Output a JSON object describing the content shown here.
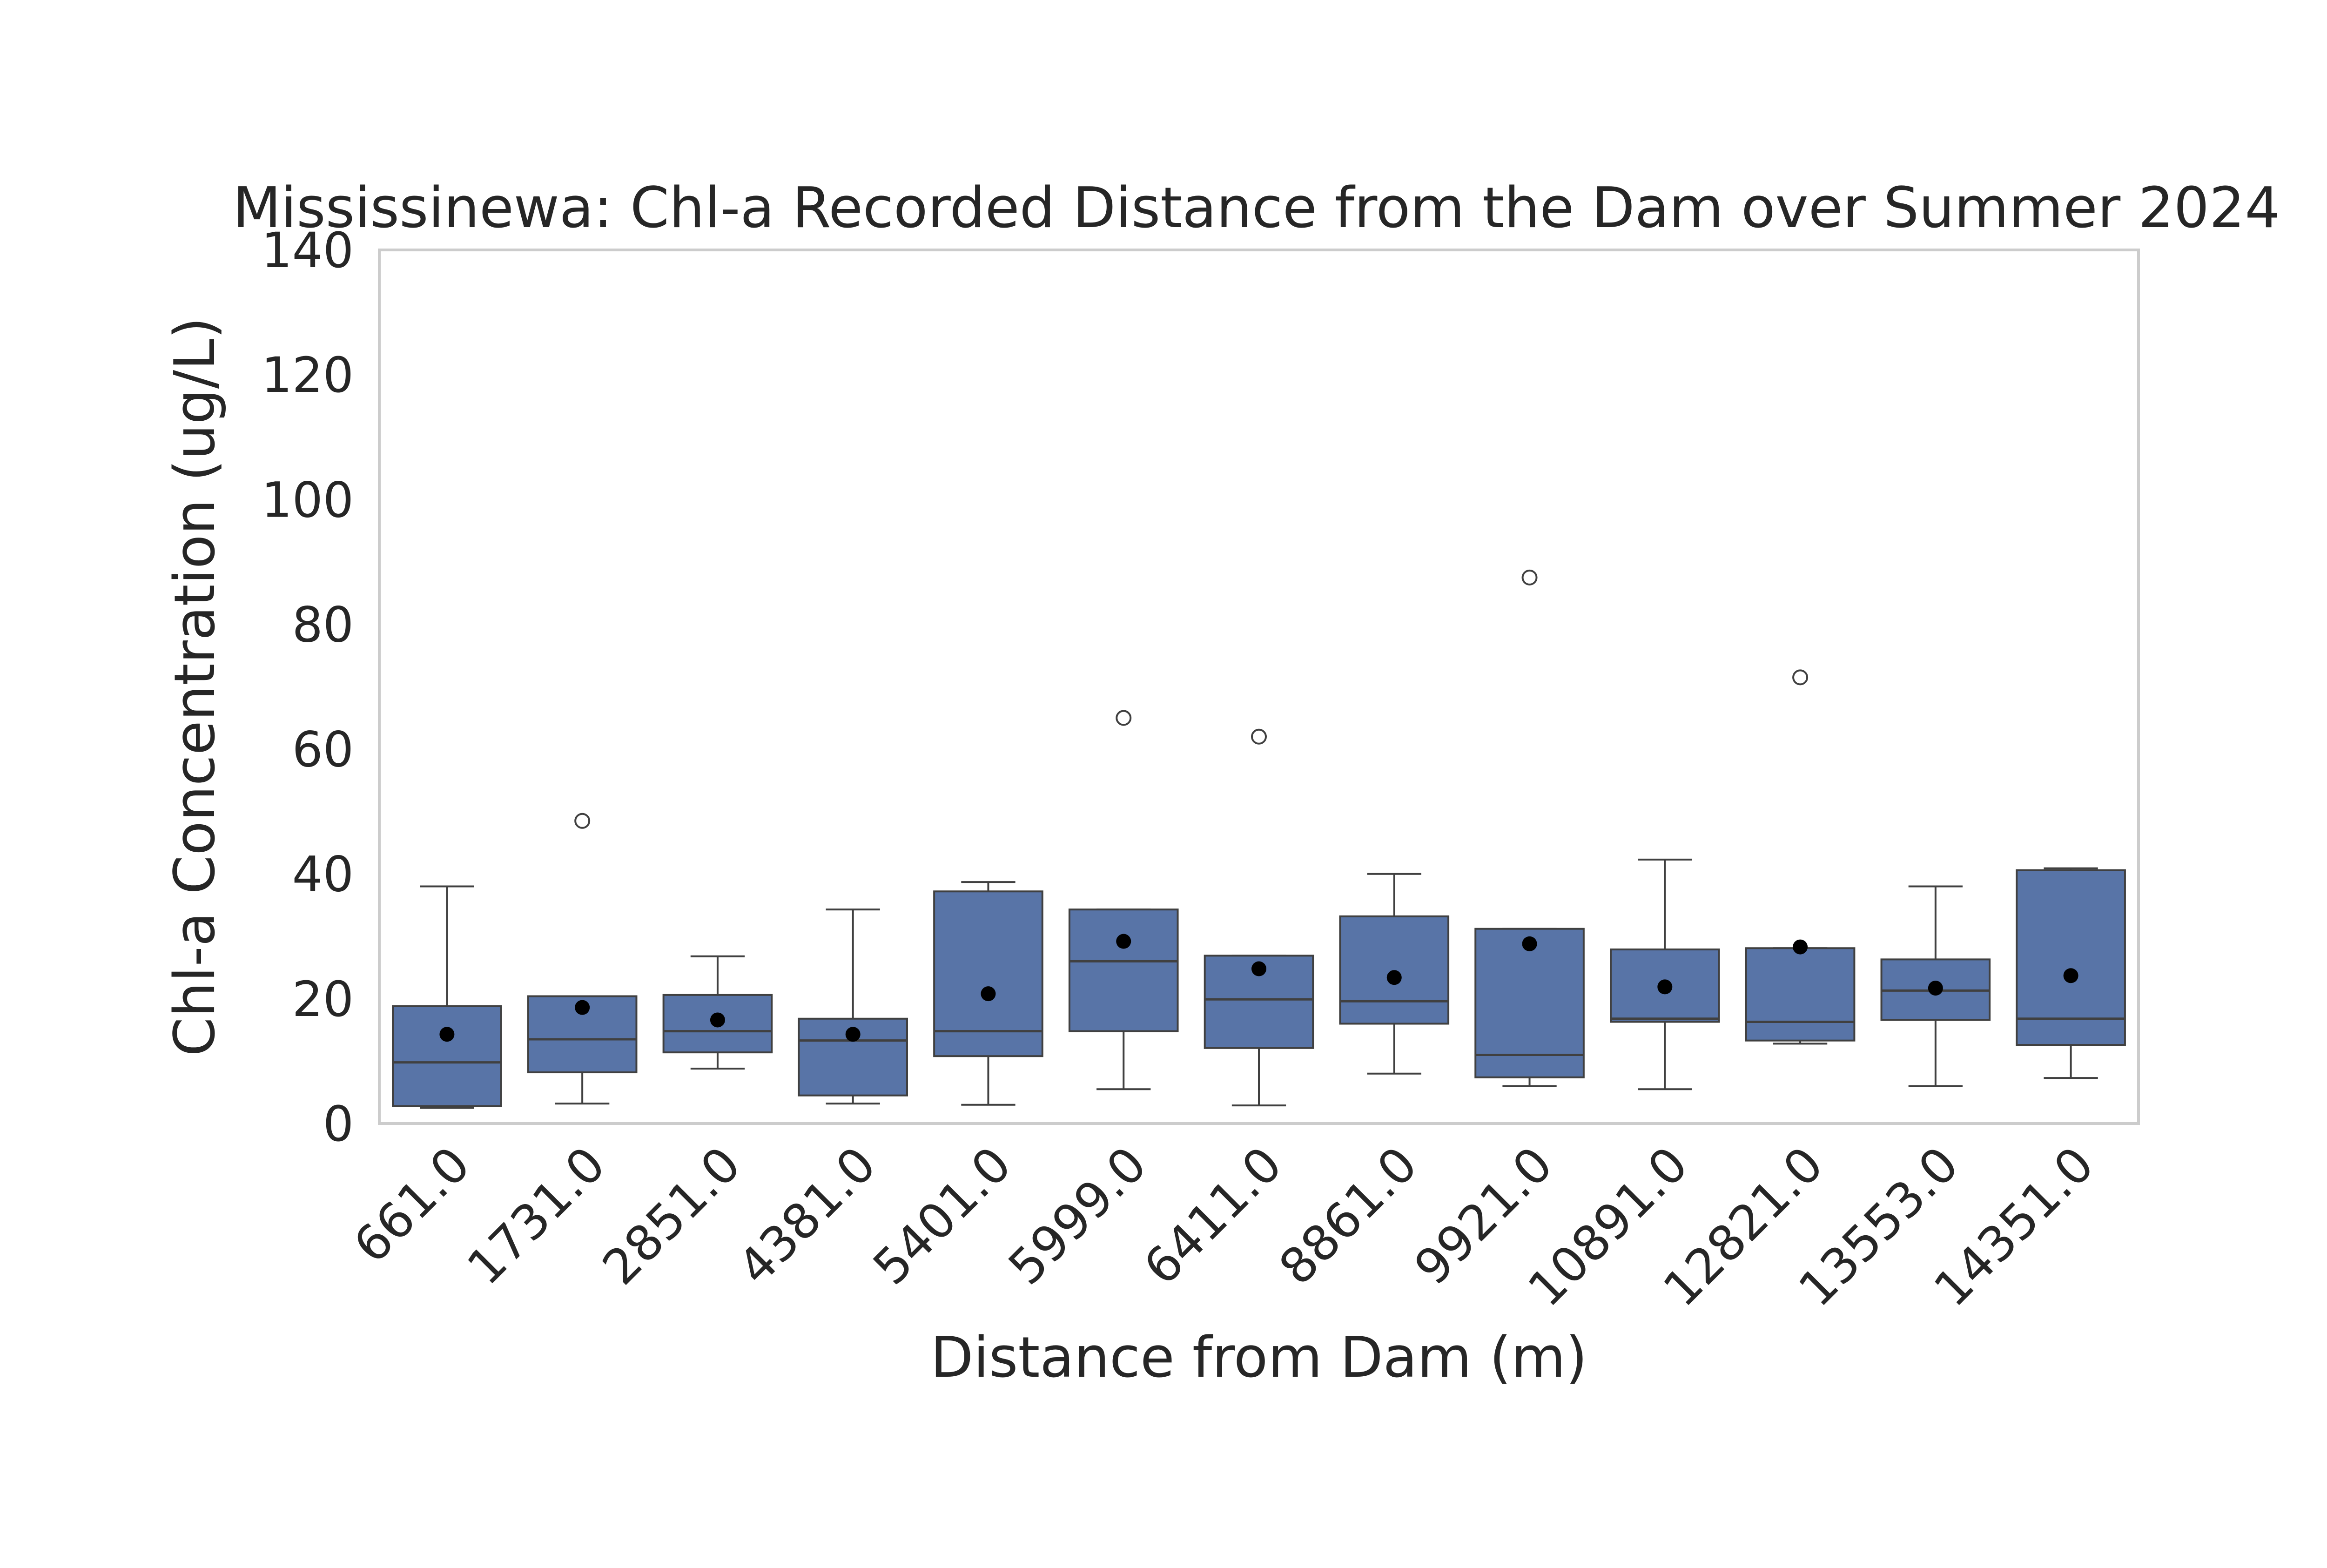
{
  "chart_data": {
    "type": "box",
    "title": "Mississinewa: Chl-a Recorded Distance from the Dam over Summer 2024",
    "xlabel": "Distance from Dam (m)",
    "ylabel": "Chl-a Concentration (ug/L)",
    "ylim": [
      0,
      140
    ],
    "yticks": [
      "0",
      "20",
      "40",
      "60",
      "80",
      "100",
      "120",
      "140"
    ],
    "grid": false,
    "legend": "none",
    "box_color": "#5874a7",
    "line_color": "#404040",
    "mean_marker_color": "#000000",
    "categories": [
      "661.0",
      "1731.0",
      "2851.0",
      "4381.0",
      "5401.0",
      "5999.0",
      "6411.0",
      "8861.0",
      "9921.0",
      "10891.0",
      "12821.0",
      "13553.0",
      "14351.0"
    ],
    "boxes": [
      {
        "category": "661.0",
        "whisker_low": 2.5,
        "q1": 2.8,
        "median": 9.8,
        "q3": 18.8,
        "whisker_high": 38.0,
        "mean": 14.3,
        "outliers": []
      },
      {
        "category": "1731.0",
        "whisker_low": 3.2,
        "q1": 8.2,
        "median": 13.5,
        "q3": 20.4,
        "whisker_high": 20.4,
        "mean": 18.6,
        "outliers": [
          48.5
        ]
      },
      {
        "category": "2851.0",
        "whisker_low": 8.8,
        "q1": 11.4,
        "median": 14.8,
        "q3": 20.6,
        "whisker_high": 26.8,
        "mean": 16.6,
        "outliers": []
      },
      {
        "category": "4381.0",
        "whisker_low": 3.2,
        "q1": 4.5,
        "median": 13.3,
        "q3": 16.8,
        "whisker_high": 34.3,
        "mean": 14.3,
        "outliers": []
      },
      {
        "category": "5401.0",
        "whisker_low": 3.0,
        "q1": 10.8,
        "median": 14.8,
        "q3": 37.2,
        "whisker_high": 38.7,
        "mean": 20.8,
        "outliers": []
      },
      {
        "category": "5999.0",
        "whisker_low": 5.5,
        "q1": 14.8,
        "median": 26.0,
        "q3": 34.3,
        "whisker_high": 34.3,
        "mean": 29.2,
        "outliers": [
          65.0
        ]
      },
      {
        "category": "6411.0",
        "whisker_low": 2.9,
        "q1": 12.1,
        "median": 19.9,
        "q3": 26.9,
        "whisker_high": 26.9,
        "mean": 24.8,
        "outliers": [
          62.0
        ]
      },
      {
        "category": "8861.0",
        "whisker_low": 8.0,
        "q1": 16.0,
        "median": 19.6,
        "q3": 33.2,
        "whisker_high": 40.0,
        "mean": 23.4,
        "outliers": []
      },
      {
        "category": "9921.0",
        "whisker_low": 6.0,
        "q1": 7.4,
        "median": 11.0,
        "q3": 31.2,
        "whisker_high": 31.2,
        "mean": 28.8,
        "outliers": [
          87.5
        ]
      },
      {
        "category": "10891.0",
        "whisker_low": 5.5,
        "q1": 16.3,
        "median": 16.8,
        "q3": 27.9,
        "whisker_high": 42.3,
        "mean": 21.9,
        "outliers": []
      },
      {
        "category": "12821.0",
        "whisker_low": 12.8,
        "q1": 13.3,
        "median": 16.3,
        "q3": 28.1,
        "whisker_high": 28.1,
        "mean": 28.3,
        "outliers": [
          71.5
        ]
      },
      {
        "category": "13553.0",
        "whisker_low": 6.0,
        "q1": 16.6,
        "median": 21.3,
        "q3": 26.3,
        "whisker_high": 38.0,
        "mean": 21.7,
        "outliers": []
      },
      {
        "category": "14351.0",
        "whisker_low": 7.3,
        "q1": 12.6,
        "median": 16.8,
        "q3": 40.6,
        "whisker_high": 40.9,
        "mean": 23.7,
        "outliers": []
      }
    ]
  }
}
